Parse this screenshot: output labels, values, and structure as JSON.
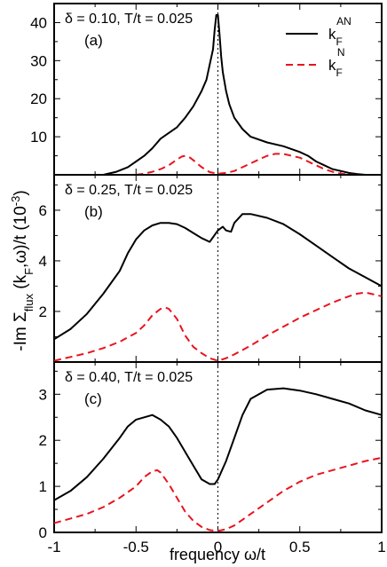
{
  "figure": {
    "ylabel_shared": "-Im Σ_flux (k_F,ω)/t  (10^-3)",
    "xlabel": "frequency ω/t",
    "legend": [
      {
        "name": "k_F^AN",
        "color": "#000000",
        "dash": "solid"
      },
      {
        "name": "k_F^N",
        "color": "#e8141e",
        "dash": "dashed"
      }
    ]
  },
  "chart_data": [
    {
      "type": "line",
      "panel_label": "(a)",
      "title": "δ = 0.10, T/t = 0.025",
      "xlim": [
        -1,
        1
      ],
      "ylim": [
        0,
        45
      ],
      "xticks": [
        -1,
        -0.5,
        0,
        0.5,
        1
      ],
      "yticks": [
        0,
        10,
        20,
        30,
        40
      ],
      "series": [
        {
          "name": "k_F^AN",
          "color": "#000000",
          "dash": "solid",
          "x": [
            -0.7,
            -0.62,
            -0.55,
            -0.5,
            -0.45,
            -0.4,
            -0.35,
            -0.3,
            -0.25,
            -0.2,
            -0.15,
            -0.1,
            -0.07,
            -0.05,
            -0.03,
            -0.02,
            -0.01,
            0.0,
            0.01,
            0.02,
            0.03,
            0.05,
            0.07,
            0.1,
            0.15,
            0.2,
            0.3,
            0.4,
            0.5,
            0.55,
            0.6,
            0.65,
            0.7,
            0.75,
            0.8,
            0.85,
            0.9
          ],
          "y": [
            0,
            0.8,
            2,
            3.5,
            5,
            7,
            9.5,
            11,
            12.5,
            15,
            18,
            22,
            25,
            29,
            33,
            38,
            42,
            42,
            37,
            31,
            27,
            22,
            18.5,
            15,
            12,
            10,
            8.5,
            7.5,
            6,
            5,
            3.5,
            2.5,
            1.5,
            1,
            0.5,
            0.2,
            0
          ]
        },
        {
          "name": "k_F^N",
          "color": "#e8141e",
          "dash": "dashed",
          "x": [
            -0.5,
            -0.45,
            -0.4,
            -0.35,
            -0.3,
            -0.25,
            -0.22,
            -0.2,
            -0.17,
            -0.14,
            -0.1,
            -0.05,
            0.0,
            0.05,
            0.1,
            0.15,
            0.2,
            0.25,
            0.3,
            0.35,
            0.4,
            0.45,
            0.5,
            0.55,
            0.6,
            0.65,
            0.7,
            0.75,
            0.8,
            0.85
          ],
          "y": [
            0,
            0.3,
            0.8,
            1.5,
            2.5,
            4,
            4.8,
            5,
            4.5,
            3.5,
            2,
            0.7,
            0.3,
            0.5,
            1,
            2,
            3,
            4,
            5,
            5.5,
            5.5,
            5,
            4.5,
            3.5,
            2.5,
            1.5,
            0.8,
            0.3,
            0.1,
            0
          ]
        }
      ]
    },
    {
      "type": "line",
      "panel_label": "(b)",
      "title": "δ = 0.25, T/t = 0.025",
      "xlim": [
        -1,
        1
      ],
      "ylim": [
        0,
        7.4
      ],
      "xticks": [
        -1,
        -0.5,
        0,
        0.5,
        1
      ],
      "yticks": [
        0,
        2,
        4,
        6
      ],
      "series": [
        {
          "name": "k_F^AN",
          "color": "#000000",
          "dash": "solid",
          "x": [
            -1.0,
            -0.9,
            -0.8,
            -0.7,
            -0.6,
            -0.55,
            -0.5,
            -0.45,
            -0.4,
            -0.35,
            -0.3,
            -0.25,
            -0.2,
            -0.15,
            -0.1,
            -0.05,
            0.0,
            0.03,
            0.05,
            0.08,
            0.1,
            0.15,
            0.2,
            0.3,
            0.4,
            0.5,
            0.6,
            0.7,
            0.8,
            0.9,
            1.0
          ],
          "y": [
            0.9,
            1.3,
            1.9,
            2.7,
            3.6,
            4.3,
            4.85,
            5.2,
            5.4,
            5.5,
            5.5,
            5.45,
            5.3,
            5.1,
            4.9,
            4.75,
            5.2,
            5.35,
            5.2,
            5.15,
            5.5,
            5.85,
            5.85,
            5.7,
            5.45,
            5.05,
            4.6,
            4.15,
            3.7,
            3.35,
            3.0
          ]
        },
        {
          "name": "k_F^N",
          "color": "#e8141e",
          "dash": "dashed",
          "x": [
            -1.0,
            -0.9,
            -0.8,
            -0.7,
            -0.6,
            -0.5,
            -0.45,
            -0.4,
            -0.35,
            -0.32,
            -0.3,
            -0.25,
            -0.2,
            -0.15,
            -0.1,
            -0.05,
            0.0,
            0.05,
            0.1,
            0.2,
            0.3,
            0.4,
            0.5,
            0.6,
            0.7,
            0.8,
            0.85,
            0.9,
            1.0
          ],
          "y": [
            0.05,
            0.2,
            0.35,
            0.55,
            0.8,
            1.15,
            1.45,
            1.85,
            2.1,
            2.15,
            2.1,
            1.7,
            1.05,
            0.6,
            0.35,
            0.15,
            0.05,
            0.15,
            0.3,
            0.65,
            1.05,
            1.4,
            1.75,
            2.05,
            2.35,
            2.6,
            2.7,
            2.75,
            2.6
          ]
        }
      ]
    },
    {
      "type": "line",
      "panel_label": "(c)",
      "title": "δ = 0.40, T/t = 0.025",
      "xlim": [
        -1,
        1
      ],
      "ylim": [
        0,
        3.7
      ],
      "xticks": [
        -1,
        -0.5,
        0,
        0.5,
        1
      ],
      "yticks": [
        0,
        1,
        2,
        3
      ],
      "series": [
        {
          "name": "k_F^AN",
          "color": "#000000",
          "dash": "solid",
          "x": [
            -1.0,
            -0.9,
            -0.8,
            -0.7,
            -0.6,
            -0.55,
            -0.5,
            -0.45,
            -0.4,
            -0.35,
            -0.3,
            -0.25,
            -0.2,
            -0.15,
            -0.1,
            -0.05,
            -0.02,
            0.0,
            0.05,
            0.1,
            0.15,
            0.2,
            0.3,
            0.4,
            0.5,
            0.6,
            0.7,
            0.8,
            0.9,
            1.0
          ],
          "y": [
            0.7,
            0.9,
            1.2,
            1.6,
            2.05,
            2.3,
            2.45,
            2.5,
            2.55,
            2.45,
            2.3,
            2.05,
            1.75,
            1.45,
            1.15,
            1.05,
            1.05,
            1.15,
            1.55,
            2.05,
            2.55,
            2.9,
            3.1,
            3.13,
            3.08,
            3.0,
            2.9,
            2.8,
            2.65,
            2.55
          ]
        },
        {
          "name": "k_F^N",
          "color": "#e8141e",
          "dash": "dashed",
          "x": [
            -1.0,
            -0.9,
            -0.8,
            -0.7,
            -0.6,
            -0.5,
            -0.45,
            -0.4,
            -0.37,
            -0.35,
            -0.3,
            -0.25,
            -0.2,
            -0.15,
            -0.1,
            -0.05,
            0.0,
            0.05,
            0.1,
            0.2,
            0.3,
            0.4,
            0.5,
            0.6,
            0.7,
            0.8,
            0.9,
            1.0
          ],
          "y": [
            0.2,
            0.3,
            0.4,
            0.55,
            0.75,
            1.0,
            1.2,
            1.33,
            1.35,
            1.3,
            1.05,
            0.75,
            0.45,
            0.25,
            0.12,
            0.05,
            0.03,
            0.07,
            0.15,
            0.4,
            0.65,
            0.9,
            1.1,
            1.25,
            1.35,
            1.45,
            1.55,
            1.62
          ]
        }
      ]
    }
  ]
}
